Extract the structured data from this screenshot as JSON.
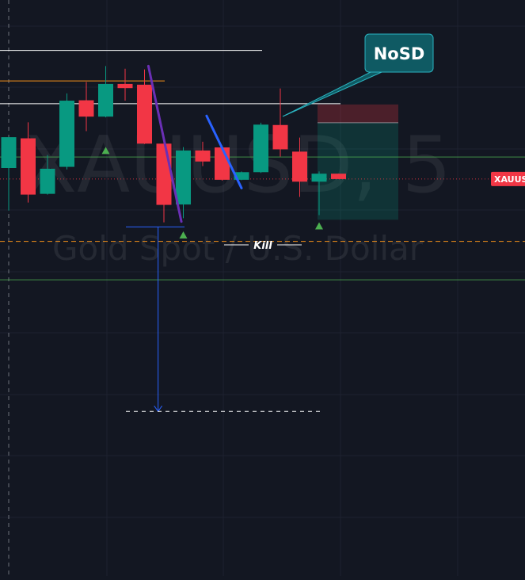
{
  "watermark": {
    "symbol_line": "XAUUSD, 5",
    "description_line": "Gold Spot / U.S. Dollar"
  },
  "annotations": {
    "callout_text": "NoSD",
    "kill_label": "Kill"
  },
  "price_tag": {
    "label": "XAUUS",
    "color": "#f23645"
  },
  "colors": {
    "background": "#131722",
    "up": "#089981",
    "down": "#f23645",
    "callout_bg": "#0f5a63",
    "callout_border": "#2bb3c0",
    "trend_purple": "#6a2fb5",
    "trend_blue": "#2962ff",
    "support_green": "#4caf50",
    "level_orange": "#f7931a"
  },
  "chart_data": {
    "type": "candlestick",
    "title": "",
    "xlabel": "",
    "ylabel": "",
    "ylim": [
      0,
      100
    ],
    "grid": true,
    "candles": [
      {
        "open": 57.5,
        "high": 65.4,
        "low": 46.3,
        "close": 65.6
      },
      {
        "open": 65.3,
        "high": 69.5,
        "low": 48.4,
        "close": 50.5
      },
      {
        "open": 50.7,
        "high": 60.9,
        "low": 50.5,
        "close": 57.3
      },
      {
        "open": 57.8,
        "high": 77.1,
        "low": 57.1,
        "close": 75.2
      },
      {
        "open": 75.3,
        "high": 80.1,
        "low": 67.2,
        "close": 71.0
      },
      {
        "open": 71.0,
        "high": 84.3,
        "low": 70.8,
        "close": 79.6
      },
      {
        "open": 79.6,
        "high": 83.6,
        "low": 75.2,
        "close": 78.5
      },
      {
        "open": 79.4,
        "high": 83.4,
        "low": 63.8,
        "close": 63.9
      },
      {
        "open": 63.9,
        "high": 64.4,
        "low": 43.2,
        "close": 47.8
      },
      {
        "open": 47.9,
        "high": 63.0,
        "low": 44.3,
        "close": 62.1
      },
      {
        "open": 62.1,
        "high": 64.4,
        "low": 58.0,
        "close": 59.2
      },
      {
        "open": 62.9,
        "high": 63.4,
        "low": 54.2,
        "close": 54.4
      },
      {
        "open": 54.4,
        "high": 56.6,
        "low": 54.3,
        "close": 56.4
      },
      {
        "open": 56.4,
        "high": 69.4,
        "low": 56.2,
        "close": 68.9
      },
      {
        "open": 68.8,
        "high": 78.4,
        "low": 60.5,
        "close": 62.4
      },
      {
        "open": 61.8,
        "high": 65.5,
        "low": 49.9,
        "close": 53.9
      },
      {
        "open": 53.9,
        "high": 56.6,
        "low": 45.1,
        "close": 56.0
      },
      {
        "open": 56.0,
        "high": 56.0,
        "low": 54.6,
        "close": 54.6
      }
    ],
    "horizontal_levels": [
      {
        "name": "white-level-upper",
        "price": 88.4,
        "color": "#ffffff"
      },
      {
        "name": "orange-level",
        "price": 80.4,
        "color": "#f7931a"
      },
      {
        "name": "white-level-lower",
        "price": 74.4,
        "color": "#ffffff"
      },
      {
        "name": "green-level-upper",
        "price": 60.4,
        "color": "#4caf50"
      },
      {
        "name": "orange-dashed-level",
        "price": 38.2,
        "color": "#f7931a"
      },
      {
        "name": "green-level-lower",
        "price": 28.1,
        "color": "#4caf50"
      }
    ],
    "current_price": 54.6,
    "signal_markers": [
      {
        "candle": 5,
        "price": 62.0
      },
      {
        "candle": 9,
        "price": 39.8
      },
      {
        "candle": 16,
        "price": 42.2
      }
    ],
    "position": {
      "start_candle": 16,
      "end_candle": 20,
      "entry": 69.4,
      "stop": 74.2,
      "target": 43.9
    },
    "measure": {
      "from_price": 42.0,
      "to_price": -6.5,
      "candle": 7.7
    },
    "trendlines": [
      {
        "name": "purple-trendline",
        "from": {
          "candle": 7.2,
          "price": 84.3
        },
        "to": {
          "candle": 8.9,
          "price": 43.4
        },
        "color": "#6a2fb5"
      },
      {
        "name": "blue-trendline",
        "from": {
          "candle": 10.2,
          "price": 71.2
        },
        "to": {
          "candle": 12.0,
          "price": 52.2
        },
        "color": "#2962ff"
      }
    ]
  }
}
